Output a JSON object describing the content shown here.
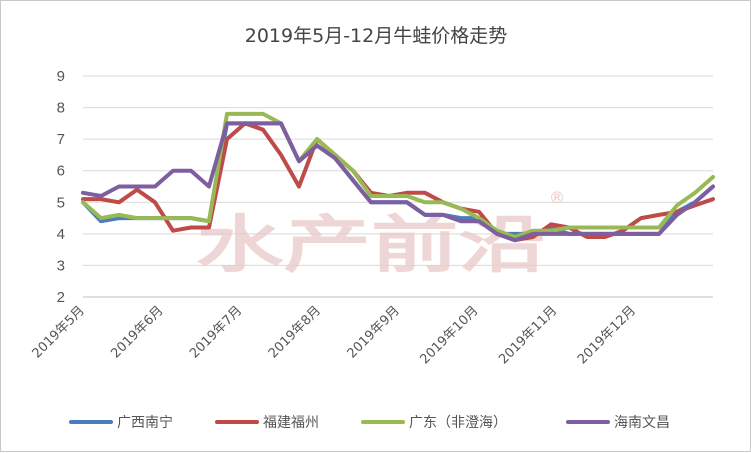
{
  "watermark": {
    "text": "水产前沿",
    "registered_mark": "®"
  },
  "chart_data": {
    "type": "line",
    "title": "2019年5月-12月牛蛙价格走势",
    "xlabel": "",
    "ylabel": "",
    "ylim": [
      2,
      9
    ],
    "yticks": [
      "2",
      "3",
      "4",
      "5",
      "6",
      "7",
      "8",
      "9"
    ],
    "x_tick_labels": [
      "2019年5月",
      "2019年6月",
      "2019年7月",
      "2019年8月",
      "2019年9月",
      "2019年10月",
      "2019年11月",
      "2019年12月"
    ],
    "grid": true,
    "legend_position": "bottom",
    "series": [
      {
        "name": "广西南宁",
        "color": "#4a7ebb",
        "values": [
          5.0,
          4.4,
          4.5,
          4.5,
          4.5,
          4.5,
          4.5,
          4.4,
          7.5,
          7.5,
          7.5,
          7.5,
          6.3,
          6.8,
          6.4,
          5.7,
          5.0,
          5.0,
          5.0,
          4.6,
          4.6,
          4.5,
          4.5,
          4.0,
          4.0,
          4.0,
          4.2,
          4.0,
          4.0,
          4.0,
          4.0,
          4.0,
          4.0,
          4.7,
          5.0,
          5.5
        ]
      },
      {
        "name": "福建福州",
        "color": "#be4b48",
        "values": [
          5.1,
          5.1,
          5.0,
          5.4,
          5.0,
          4.1,
          4.2,
          4.2,
          7.0,
          7.5,
          7.3,
          6.5,
          5.5,
          7.0,
          6.5,
          6.0,
          5.3,
          5.2,
          5.3,
          5.3,
          5.0,
          4.8,
          4.7,
          4.0,
          3.8,
          3.9,
          4.3,
          4.2,
          3.9,
          3.9,
          4.1,
          4.5,
          4.6,
          4.7,
          4.9,
          5.1
        ]
      },
      {
        "name": "广东（非澄海）",
        "color": "#98b954",
        "values": [
          5.0,
          4.5,
          4.6,
          4.5,
          4.5,
          4.5,
          4.5,
          4.4,
          7.8,
          7.8,
          7.8,
          7.5,
          6.3,
          7.0,
          6.5,
          6.0,
          5.2,
          5.2,
          5.2,
          5.0,
          5.0,
          4.8,
          4.5,
          4.1,
          3.9,
          4.1,
          4.1,
          4.2,
          4.2,
          4.2,
          4.2,
          4.2,
          4.2,
          4.9,
          5.3,
          5.8
        ]
      },
      {
        "name": "海南文昌",
        "color": "#7d5fa0",
        "values": [
          5.3,
          5.2,
          5.5,
          5.5,
          5.5,
          6.0,
          6.0,
          5.5,
          7.5,
          7.5,
          7.5,
          7.5,
          6.3,
          6.8,
          6.4,
          5.7,
          5.0,
          5.0,
          5.0,
          4.6,
          4.6,
          4.4,
          4.4,
          4.0,
          3.8,
          4.0,
          4.0,
          4.0,
          4.0,
          4.0,
          4.0,
          4.0,
          4.0,
          4.6,
          5.0,
          5.5
        ]
      }
    ]
  }
}
